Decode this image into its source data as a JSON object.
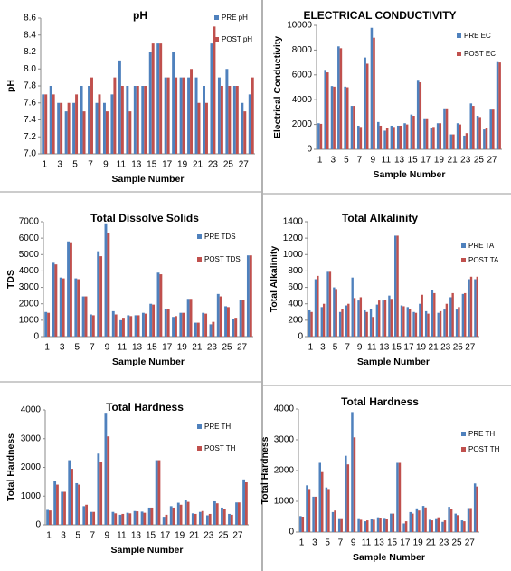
{
  "chart_data": [
    {
      "type": "bar",
      "title": "pH",
      "x_label": "Sample Number",
      "y_label": "pH",
      "categories": [
        "1",
        null,
        "3",
        null,
        "5",
        null,
        "7",
        null,
        "9",
        null,
        "11",
        null,
        "13",
        null,
        "15",
        null,
        "17",
        null,
        "19",
        null,
        "21",
        null,
        "23",
        null,
        "25",
        null,
        "27",
        null
      ],
      "series": [
        {
          "name": "PRE pH",
          "color": "#4f81bd",
          "values": [
            7.7,
            7.8,
            7.6,
            7.5,
            7.6,
            7.8,
            7.8,
            7.6,
            7.6,
            7.7,
            8.1,
            7.8,
            7.8,
            7.8,
            8.2,
            8.3,
            7.9,
            8.2,
            7.9,
            7.9,
            7.9,
            7.8,
            8.3,
            7.9,
            8.0,
            7.8,
            7.6,
            7.7
          ]
        },
        {
          "name": "POST pH",
          "color": "#c0504d",
          "values": [
            7.7,
            7.7,
            7.6,
            7.6,
            7.7,
            7.5,
            7.9,
            7.7,
            7.5,
            7.9,
            7.8,
            7.5,
            7.8,
            7.8,
            8.3,
            8.3,
            7.9,
            7.9,
            7.9,
            8.0,
            7.6,
            7.6,
            8.5,
            7.8,
            7.8,
            7.8,
            7.5,
            7.9
          ]
        }
      ],
      "ylim": [
        7.0,
        8.6
      ],
      "yticks": [
        {
          "value": 7.0,
          "label": "7.0"
        },
        7.2,
        7.4,
        7.6,
        7.8,
        {
          "value": 8.0,
          "label": "8.0"
        },
        8.2,
        8.4,
        8.6
      ]
    },
    {
      "type": "bar",
      "title": "ELECTRICAL CONDUCTIVITY",
      "x_label": "Sample Number",
      "y_label": "Electrical Conductivity",
      "categories": [
        "1",
        null,
        "3",
        null,
        "5",
        null,
        "7",
        null,
        "9",
        null,
        "11",
        null,
        "13",
        null,
        "15",
        null,
        "17",
        null,
        "19",
        null,
        "21",
        null,
        "23",
        null,
        "25",
        null,
        "27",
        null
      ],
      "series": [
        {
          "name": "PRE EC",
          "color": "#4f81bd",
          "values": [
            2100,
            6400,
            5100,
            8300,
            5050,
            3500,
            1900,
            7400,
            9800,
            2200,
            1500,
            1900,
            1900,
            2100,
            2800,
            5600,
            2500,
            1700,
            2100,
            3300,
            1200,
            2100,
            1100,
            3700,
            2700,
            1600,
            3200,
            7100
          ]
        },
        {
          "name": "POST EC",
          "color": "#c0504d",
          "values": [
            2050,
            6200,
            5050,
            8150,
            5000,
            3500,
            1800,
            6900,
            9000,
            1900,
            1700,
            1800,
            1900,
            2000,
            2700,
            5400,
            2500,
            1800,
            2100,
            3300,
            1200,
            2000,
            1300,
            3500,
            2600,
            1700,
            3200,
            7000
          ]
        }
      ],
      "ylim": [
        0,
        10000
      ],
      "yticks": [
        0,
        2000,
        4000,
        6000,
        8000,
        10000
      ]
    },
    {
      "type": "bar",
      "title": "Total Dissolve Solids",
      "x_label": "Sample Number",
      "y_label": "TDS",
      "categories": [
        "1",
        null,
        "3",
        null,
        "5",
        null,
        "7",
        null,
        "9",
        null,
        "11",
        null,
        "13",
        null,
        "15",
        null,
        "17",
        null,
        "19",
        null,
        "21",
        null,
        "23",
        null,
        "25",
        null,
        "27",
        null
      ],
      "series": [
        {
          "name": "PRE TDS",
          "color": "#4f81bd",
          "values": [
            1500,
            4500,
            3600,
            5800,
            3550,
            2450,
            1350,
            5200,
            6900,
            1550,
            1000,
            1300,
            1300,
            1450,
            2000,
            3900,
            1700,
            1200,
            1450,
            2300,
            850,
            1450,
            750,
            2600,
            1850,
            1100,
            2250,
            4950
          ]
        },
        {
          "name": "POST TDS",
          "color": "#c0504d",
          "values": [
            1450,
            4400,
            3550,
            5750,
            3500,
            2450,
            1300,
            4900,
            6300,
            1350,
            1150,
            1250,
            1300,
            1400,
            1950,
            3800,
            1700,
            1250,
            1450,
            2300,
            850,
            1400,
            900,
            2450,
            1800,
            1150,
            2250,
            4950
          ]
        }
      ],
      "ylim": [
        0,
        7000
      ],
      "yticks": [
        0,
        1000,
        2000,
        3000,
        4000,
        5000,
        6000,
        7000
      ]
    },
    {
      "type": "bar",
      "title": "Total Alkalinity",
      "x_label": "Sample Number",
      "y_label": "Total Alkalinity",
      "categories": [
        "1",
        null,
        "3",
        null,
        "5",
        null,
        "7",
        null,
        "9",
        null,
        "11",
        null,
        "13",
        null,
        "15",
        null,
        "17",
        null,
        "19",
        null,
        "21",
        null,
        "23",
        null,
        "25",
        null,
        "27",
        null
      ],
      "series": [
        {
          "name": "PRE TA",
          "color": "#4f81bd",
          "values": [
            320,
            700,
            360,
            790,
            600,
            300,
            380,
            720,
            440,
            320,
            340,
            390,
            440,
            500,
            1230,
            380,
            360,
            300,
            400,
            310,
            570,
            290,
            330,
            480,
            330,
            520,
            700,
            700
          ]
        },
        {
          "name": "POST TA",
          "color": "#c0504d",
          "values": [
            300,
            740,
            400,
            790,
            580,
            340,
            400,
            470,
            480,
            300,
            240,
            440,
            450,
            460,
            1230,
            370,
            340,
            290,
            510,
            280,
            530,
            310,
            400,
            530,
            360,
            530,
            730,
            730
          ]
        }
      ],
      "ylim": [
        0,
        1400
      ],
      "yticks": [
        0,
        200,
        400,
        600,
        800,
        1000,
        1200,
        1400
      ]
    },
    {
      "type": "bar",
      "title": "Total  Hardness",
      "x_label": "Sample Number",
      "y_label": "Total Hardness",
      "categories": [
        "1",
        null,
        "3",
        null,
        "5",
        null,
        "7",
        null,
        "9",
        null,
        "11",
        null,
        "13",
        null,
        "15",
        null,
        "17",
        null,
        "19",
        null,
        "21",
        null,
        "23",
        null,
        "25",
        null,
        "27",
        null
      ],
      "series": [
        {
          "name": "PRE TH",
          "color": "#4f81bd",
          "values": [
            520,
            1520,
            1150,
            2250,
            1450,
            650,
            450,
            2480,
            3900,
            450,
            350,
            420,
            480,
            460,
            600,
            2250,
            280,
            650,
            770,
            850,
            400,
            450,
            330,
            820,
            600,
            380,
            780,
            1580
          ]
        },
        {
          "name": "POST TH",
          "color": "#c0504d",
          "values": [
            500,
            1400,
            1150,
            1950,
            1400,
            700,
            450,
            2200,
            3080,
            400,
            380,
            400,
            470,
            420,
            600,
            2250,
            350,
            600,
            700,
            800,
            380,
            480,
            380,
            750,
            550,
            350,
            780,
            1480
          ]
        }
      ],
      "ylim": [
        0,
        4000
      ],
      "yticks": [
        0,
        1000,
        2000,
        3000,
        4000
      ]
    },
    {
      "type": "bar",
      "title": "Total Hardness",
      "x_label": "Sample Number",
      "y_label": "Total Hardness",
      "categories": [
        "1",
        null,
        "3",
        null,
        "5",
        null,
        "7",
        null,
        "9",
        null,
        "11",
        null,
        "13",
        null,
        "15",
        null,
        "17",
        null,
        "19",
        null,
        "21",
        null,
        "23",
        null,
        "25",
        null,
        "27",
        null
      ],
      "series": [
        {
          "name": "PRE TH",
          "color": "#4f81bd",
          "values": [
            520,
            1520,
            1150,
            2250,
            1450,
            650,
            450,
            2480,
            3900,
            450,
            350,
            420,
            480,
            460,
            600,
            2250,
            280,
            650,
            770,
            850,
            400,
            450,
            330,
            820,
            600,
            380,
            780,
            1580
          ]
        },
        {
          "name": "POST TH",
          "color": "#c0504d",
          "values": [
            500,
            1400,
            1150,
            1950,
            1400,
            700,
            450,
            2200,
            3080,
            400,
            380,
            400,
            470,
            420,
            600,
            2250,
            350,
            600,
            700,
            800,
            380,
            480,
            380,
            750,
            550,
            350,
            780,
            1480
          ]
        }
      ],
      "ylim": [
        0,
        4000
      ],
      "yticks": [
        0,
        1000,
        2000,
        3000,
        4000
      ]
    }
  ]
}
